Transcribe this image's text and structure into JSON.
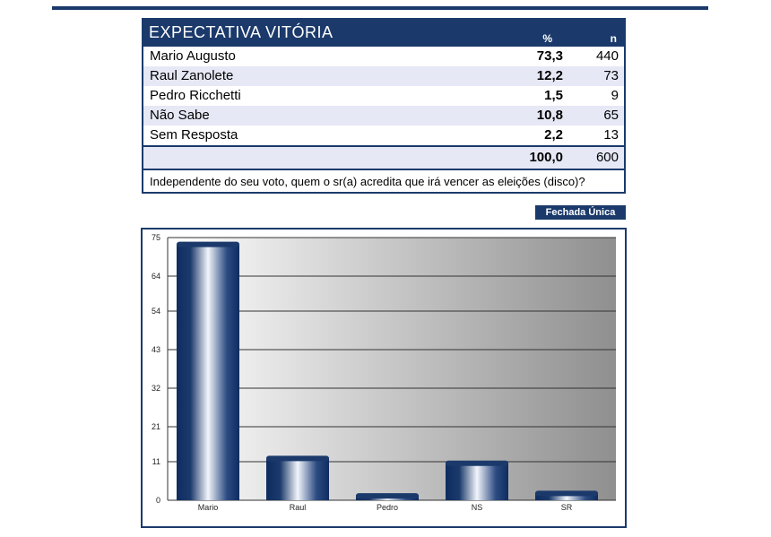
{
  "table": {
    "title": "EXPECTATIVA VITÓRIA",
    "col_pct": "%",
    "col_n": "n",
    "rows": [
      {
        "label": "Mario Augusto",
        "pct": "73,3",
        "n": "440"
      },
      {
        "label": "Raul Zanolete",
        "pct": "12,2",
        "n": "73"
      },
      {
        "label": "Pedro Ricchetti",
        "pct": "1,5",
        "n": "9"
      },
      {
        "label": "Não Sabe",
        "pct": "10,8",
        "n": "65"
      },
      {
        "label": "Sem Resposta",
        "pct": "2,2",
        "n": "13"
      }
    ],
    "total_pct": "100,0",
    "total_n": "600",
    "question": "Independente do seu voto, quem o sr(a) acredita que irá vencer as eleições (disco)?",
    "tag": "Fechada Única"
  },
  "chart_data": {
    "type": "bar",
    "categories": [
      "Mario",
      "Raul",
      "Pedro",
      "NS",
      "SR"
    ],
    "values": [
      73.3,
      12.2,
      1.5,
      10.8,
      2.2
    ],
    "yticks": [
      "0",
      "11",
      "21",
      "32",
      "43",
      "54",
      "64",
      "75"
    ],
    "ylim": [
      0,
      75
    ],
    "grid": true,
    "bar_color": "#1b3a6b",
    "title": "",
    "xlabel": "",
    "ylabel": ""
  }
}
